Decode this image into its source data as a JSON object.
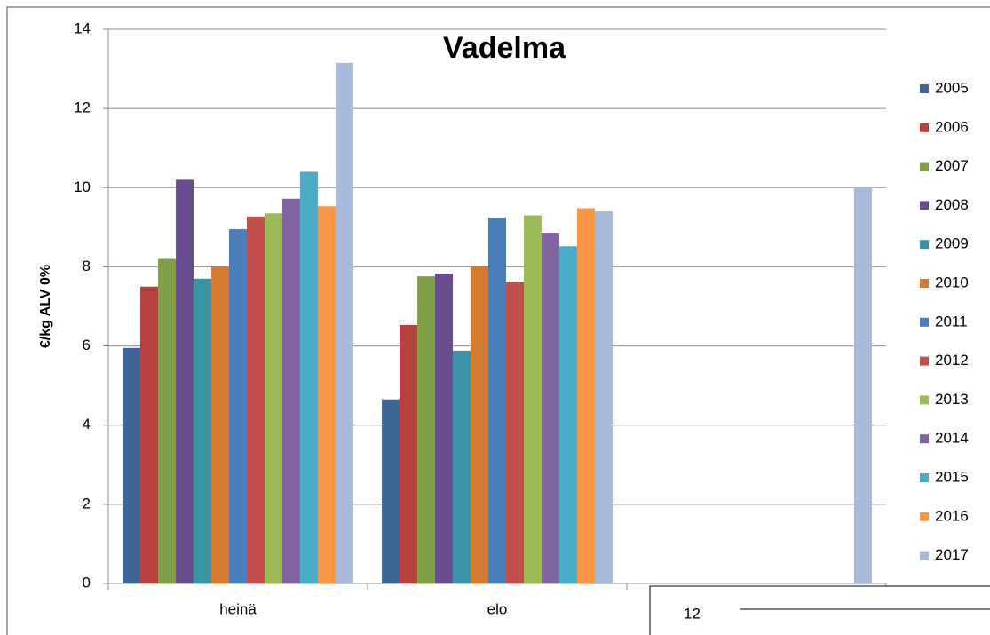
{
  "chart_data": {
    "type": "bar",
    "title": "Vadelma",
    "ylabel": "€/kg ALV 0%",
    "categories": [
      "heinä",
      "elo",
      null
    ],
    "series": [
      {
        "name": "2005",
        "color": "#3e6596",
        "values": [
          5.95,
          4.65,
          null
        ]
      },
      {
        "name": "2006",
        "color": "#b8403d",
        "values": [
          7.5,
          6.53,
          null
        ]
      },
      {
        "name": "2007",
        "color": "#809f47",
        "values": [
          8.2,
          7.76,
          null
        ]
      },
      {
        "name": "2008",
        "color": "#6a4d8e",
        "values": [
          10.2,
          7.83,
          null
        ]
      },
      {
        "name": "2009",
        "color": "#3b93a8",
        "values": [
          7.7,
          5.88,
          null
        ]
      },
      {
        "name": "2010",
        "color": "#d47b30",
        "values": [
          8.0,
          8.0,
          null
        ]
      },
      {
        "name": "2011",
        "color": "#4a7ebb",
        "values": [
          8.95,
          9.24,
          null
        ]
      },
      {
        "name": "2012",
        "color": "#c0504d",
        "values": [
          9.27,
          7.62,
          null
        ]
      },
      {
        "name": "2013",
        "color": "#9bbb59",
        "values": [
          9.35,
          9.3,
          null
        ]
      },
      {
        "name": "2014",
        "color": "#8064a2",
        "values": [
          9.72,
          8.86,
          null
        ]
      },
      {
        "name": "2015",
        "color": "#4bacc6",
        "values": [
          10.4,
          8.52,
          null
        ]
      },
      {
        "name": "2016",
        "color": "#f79646",
        "values": [
          9.53,
          9.48,
          null
        ]
      },
      {
        "name": "2017",
        "color": "#a8b9dc",
        "values": [
          13.15,
          9.4,
          10.02
        ]
      }
    ],
    "ylim": [
      0,
      14
    ],
    "yticks": [
      0,
      2,
      4,
      6,
      8,
      10,
      12,
      14
    ],
    "grid": true,
    "legend": "right",
    "annotation": "12"
  }
}
